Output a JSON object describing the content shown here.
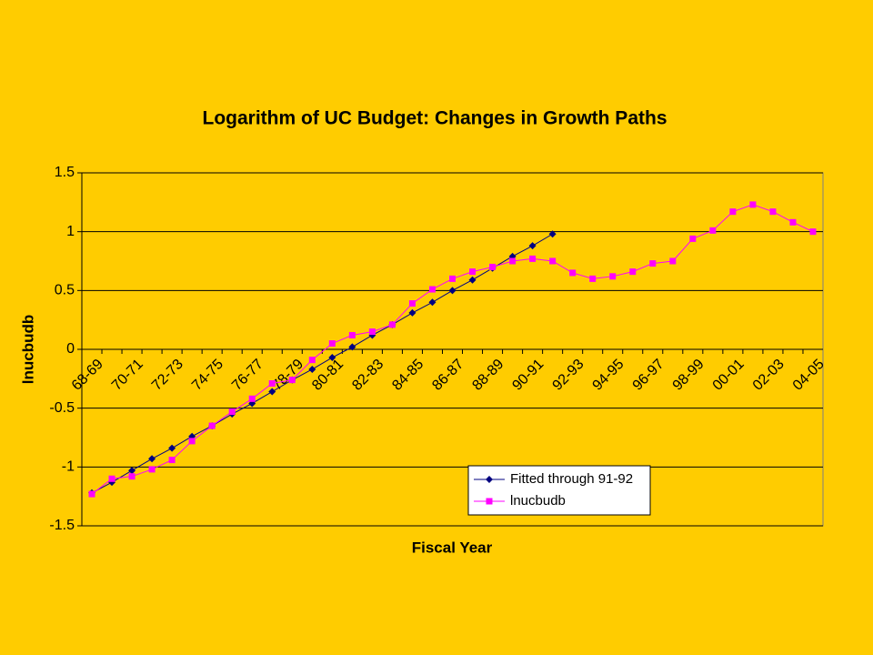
{
  "chart_data": {
    "type": "line",
    "title": "Logarithm of UC Budget: Changes in Growth Paths",
    "x_label": "Fiscal Year",
    "y_label": "lnucbudb",
    "categories": [
      "68-69",
      null,
      "70-71",
      null,
      "72-73",
      null,
      "74-75",
      null,
      "76-77",
      null,
      "78-79",
      null,
      "80-81",
      null,
      "82-83",
      null,
      "84-85",
      null,
      "86-87",
      null,
      "88-89",
      null,
      "90-91",
      null,
      "92-93",
      null,
      "94-95",
      null,
      "96-97",
      null,
      "98-99",
      null,
      "00-01",
      null,
      "02-03",
      null,
      "04-05"
    ],
    "series": [
      {
        "name": "Fitted through 91-92",
        "color": "#000080",
        "marker": "diamond",
        "values": [
          -1.22,
          -1.13,
          -1.03,
          -0.93,
          -0.84,
          -0.74,
          -0.65,
          -0.55,
          -0.46,
          -0.36,
          -0.26,
          -0.17,
          -0.07,
          0.02,
          0.12,
          0.21,
          0.31,
          0.4,
          0.5,
          0.59,
          0.69,
          0.79,
          0.88,
          0.98,
          null,
          null,
          null,
          null,
          null,
          null,
          null,
          null,
          null,
          null,
          null,
          null,
          null
        ]
      },
      {
        "name": "lnucbudb",
        "color": "#FF00FF",
        "marker": "square",
        "values": [
          -1.23,
          -1.1,
          -1.08,
          -1.02,
          -0.94,
          -0.78,
          -0.65,
          -0.53,
          -0.42,
          -0.29,
          -0.26,
          -0.09,
          0.05,
          0.12,
          0.15,
          0.21,
          0.39,
          0.51,
          0.6,
          0.66,
          0.7,
          0.75,
          0.77,
          0.75,
          0.65,
          0.6,
          0.62,
          0.66,
          0.73,
          0.75,
          0.94,
          1.01,
          1.17,
          1.23,
          1.17,
          1.08,
          1.0
        ]
      }
    ],
    "ylim": [
      -1.5,
      1.5
    ],
    "yticks": [
      1.5,
      1,
      0.5,
      0,
      -0.5,
      -1,
      -1.5
    ],
    "grid": true,
    "legend": "lower right"
  }
}
